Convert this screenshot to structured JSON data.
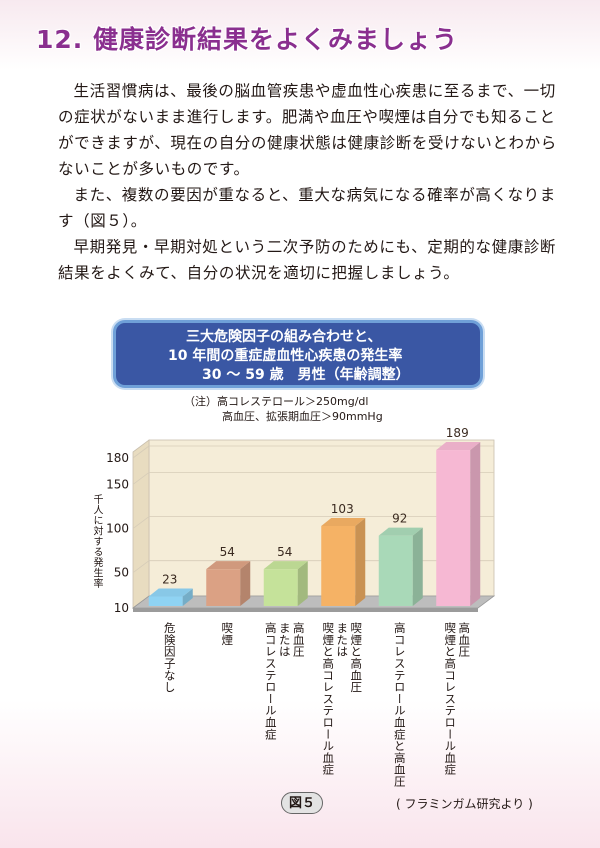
{
  "page": {
    "title": "12. 健康診断結果をよくみましょう",
    "paragraphs": [
      "生活習慣病は、最後の脳血管疾患や虚血性心疾患に至るまで、一切の症状がないまま進行します。肥満や血圧や喫煙は自分でも知ることができますが、現在の自分の健康状態は健康診断を受けないとわからないことが多いものです。",
      "また、複数の要因が重なると、重大な病気になる確率が高くなります（図５）。",
      "早期発見・早期対処という二次予防のためにも、定期的な健康診断結果をよくみて、自分の状況を適切に把握しましょう。"
    ],
    "figure_label": "図５",
    "source": "( フラミンガム研究より )"
  },
  "chart_data": {
    "type": "bar",
    "title_lines": [
      "三大危険因子の組み合わせと、",
      "10 年間の重症虚血性心疾患の発生率",
      "30 ～ 59 歳　男性（年齢調整）"
    ],
    "notes": [
      "（注）高コレステロール＞250mg/dl",
      "高血圧、拡張期血圧＞90mmHg"
    ],
    "ylabel": "千人に対する発生率",
    "yticks": [
      10,
      50,
      100,
      150,
      180
    ],
    "ylim": [
      10,
      180
    ],
    "categories": [
      [
        "危険因子なし"
      ],
      [
        "喫煙"
      ],
      [
        "高血圧",
        "または",
        "高コレステロール血症"
      ],
      [
        "喫煙と高血圧",
        "または",
        "喫煙と高コレステロール血症"
      ],
      [
        "高コレステロール血症と高血圧"
      ],
      [
        "高血圧",
        "喫煙と高コレステロール血症"
      ]
    ],
    "values": [
      23,
      54,
      54,
      103,
      92,
      189
    ],
    "colors": [
      "#8fd3f3",
      "#dba184",
      "#c5e29a",
      "#f5b265",
      "#a9d9b8",
      "#f6b8d3"
    ]
  }
}
